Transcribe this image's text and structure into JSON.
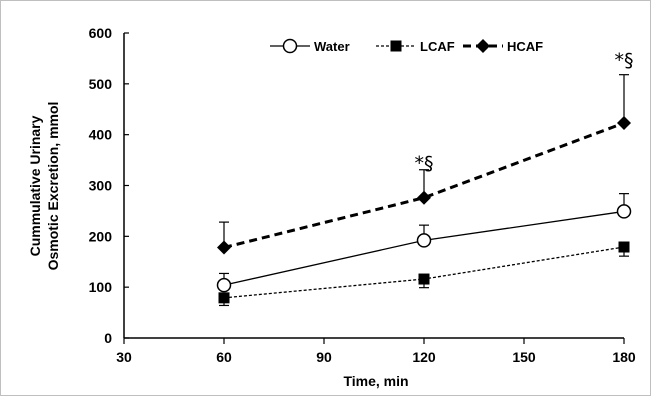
{
  "chart_data": {
    "type": "line",
    "xlabel": "Time, min",
    "ylabel": [
      "Cummulative Urinary",
      "Osmotic Excretion, mmol"
    ],
    "xlim": [
      30,
      180
    ],
    "ylim": [
      0,
      600
    ],
    "xticks": [
      30,
      60,
      90,
      120,
      150,
      180
    ],
    "yticks": [
      0,
      100,
      200,
      300,
      400,
      500,
      600
    ],
    "x": [
      60,
      120,
      180
    ],
    "grid": false,
    "legend_position": "top-center",
    "series": [
      {
        "name": "Water",
        "values": [
          104,
          192,
          249
        ],
        "errors": [
          23,
          30,
          35
        ],
        "marker": "circle-open",
        "line_style": "solid",
        "color": "#000000"
      },
      {
        "name": "LCAF",
        "values": [
          79,
          116,
          179
        ],
        "errors": [
          15,
          17,
          18
        ],
        "marker": "square-filled",
        "line_style": "dotted",
        "color": "#000000"
      },
      {
        "name": "HCAF",
        "values": [
          178,
          276,
          423
        ],
        "errors": [
          50,
          55,
          95
        ],
        "marker": "diamond-filled",
        "line_style": "dashed",
        "color": "#000000"
      }
    ],
    "annotations": [
      {
        "x": 120,
        "y": 345,
        "text": "*§"
      },
      {
        "x": 180,
        "y": 548,
        "text": "*§"
      }
    ]
  }
}
